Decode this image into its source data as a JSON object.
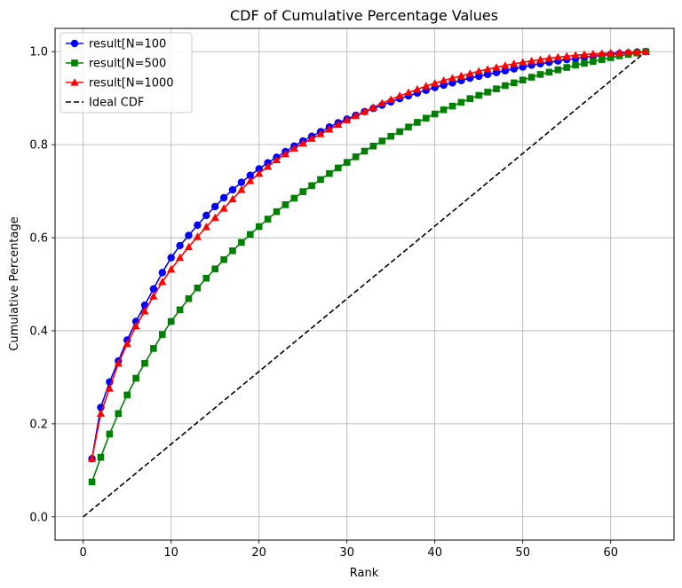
{
  "chart_data": {
    "type": "line",
    "title": "CDF of Cumulative Percentage Values",
    "xlabel": "Rank",
    "ylabel": "Cumulative Percentage",
    "xlim": [
      -3.2,
      67.2
    ],
    "ylim": [
      -0.05,
      1.05
    ],
    "xticks": [
      0,
      10,
      20,
      30,
      40,
      50,
      60
    ],
    "yticks": [
      0.0,
      0.2,
      0.4,
      0.6,
      0.8,
      1.0
    ],
    "xtick_labels": [
      "0",
      "10",
      "20",
      "30",
      "40",
      "50",
      "60"
    ],
    "ytick_labels": [
      "0.0",
      "0.2",
      "0.4",
      "0.6",
      "0.8",
      "1.0"
    ],
    "grid": true,
    "legend_position": "top-left",
    "x": [
      1,
      2,
      3,
      4,
      5,
      6,
      7,
      8,
      9,
      10,
      11,
      12,
      13,
      14,
      15,
      16,
      17,
      18,
      19,
      20,
      21,
      22,
      23,
      24,
      25,
      26,
      27,
      28,
      29,
      30,
      31,
      32,
      33,
      34,
      35,
      36,
      37,
      38,
      39,
      40,
      41,
      42,
      43,
      44,
      45,
      46,
      47,
      48,
      49,
      50,
      51,
      52,
      53,
      54,
      55,
      56,
      57,
      58,
      59,
      60,
      61,
      62,
      63,
      64
    ],
    "series": [
      {
        "name": "result[N=100",
        "color": "#0000ff",
        "marker": "circle",
        "values": [
          0.125,
          0.235,
          0.29,
          0.335,
          0.38,
          0.42,
          0.455,
          0.49,
          0.525,
          0.557,
          0.583,
          0.605,
          0.627,
          0.648,
          0.667,
          0.686,
          0.703,
          0.719,
          0.734,
          0.748,
          0.761,
          0.773,
          0.785,
          0.797,
          0.808,
          0.818,
          0.828,
          0.838,
          0.847,
          0.855,
          0.863,
          0.871,
          0.878,
          0.885,
          0.892,
          0.899,
          0.905,
          0.911,
          0.917,
          0.923,
          0.928,
          0.933,
          0.938,
          0.943,
          0.947,
          0.951,
          0.955,
          0.959,
          0.963,
          0.967,
          0.971,
          0.974,
          0.977,
          0.98,
          0.983,
          0.985,
          0.988,
          0.99,
          0.992,
          0.994,
          0.996,
          0.997,
          0.999,
          1.0
        ]
      },
      {
        "name": "result[N=500",
        "color": "#008000",
        "marker": "square",
        "values": [
          0.075,
          0.128,
          0.178,
          0.222,
          0.262,
          0.298,
          0.33,
          0.362,
          0.392,
          0.42,
          0.445,
          0.469,
          0.492,
          0.513,
          0.533,
          0.553,
          0.572,
          0.59,
          0.607,
          0.624,
          0.64,
          0.656,
          0.671,
          0.685,
          0.699,
          0.712,
          0.725,
          0.738,
          0.75,
          0.762,
          0.774,
          0.786,
          0.797,
          0.808,
          0.818,
          0.828,
          0.838,
          0.848,
          0.857,
          0.866,
          0.875,
          0.883,
          0.891,
          0.899,
          0.906,
          0.913,
          0.92,
          0.927,
          0.933,
          0.939,
          0.945,
          0.951,
          0.956,
          0.961,
          0.966,
          0.971,
          0.975,
          0.979,
          0.983,
          0.987,
          0.991,
          0.994,
          0.997,
          1.0
        ]
      },
      {
        "name": "result[N=1000",
        "color": "#ff0000",
        "marker": "triangle",
        "values": [
          0.125,
          0.222,
          0.276,
          0.33,
          0.372,
          0.41,
          0.442,
          0.474,
          0.505,
          0.532,
          0.557,
          0.58,
          0.602,
          0.623,
          0.643,
          0.663,
          0.683,
          0.703,
          0.722,
          0.738,
          0.753,
          0.767,
          0.78,
          0.792,
          0.803,
          0.813,
          0.823,
          0.833,
          0.843,
          0.853,
          0.862,
          0.871,
          0.88,
          0.889,
          0.897,
          0.905,
          0.912,
          0.919,
          0.926,
          0.932,
          0.938,
          0.943,
          0.948,
          0.953,
          0.958,
          0.962,
          0.966,
          0.97,
          0.974,
          0.977,
          0.98,
          0.983,
          0.986,
          0.988,
          0.99,
          0.992,
          0.994,
          0.995,
          0.996,
          0.997,
          0.998,
          0.999,
          0.999,
          1.0
        ]
      },
      {
        "name": "Ideal CDF",
        "color": "#000000",
        "marker": "none",
        "dashed": true,
        "x": [
          0,
          64
        ],
        "values": [
          0.0,
          1.0
        ]
      }
    ]
  }
}
